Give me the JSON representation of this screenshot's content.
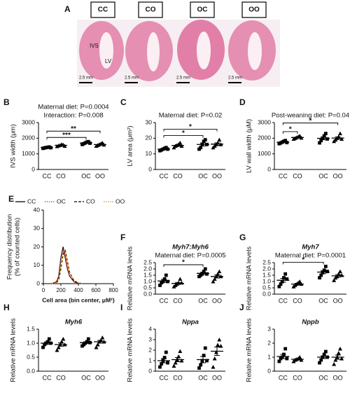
{
  "figure_a": {
    "label": "A",
    "groups": [
      "CC",
      "CO",
      "OC",
      "OO"
    ],
    "annotations": [
      "IVS",
      "LV"
    ],
    "scale_bar": "2.5 mm"
  },
  "chart_data": [
    {
      "type": "dot",
      "panel": "B",
      "annotations": [
        "Maternal diet: P=0.0004",
        "Interaction: P=0.008"
      ],
      "ylabel": "IVS width (μm)",
      "categories": [
        "CC",
        "CO",
        "OC",
        "OO"
      ],
      "markers": [
        "square",
        "triangle",
        "square",
        "triangle"
      ],
      "color": "#000000",
      "points": [
        [
          1350,
          1380,
          1400,
          1420,
          1440,
          1390
        ],
        [
          1480,
          1520,
          1550,
          1600,
          1580,
          1500
        ],
        [
          1600,
          1650,
          1700,
          1750,
          1780,
          1680
        ],
        [
          1500,
          1550,
          1600,
          1650,
          1700,
          1580
        ]
      ],
      "means": [
        1400,
        1545,
        1695,
        1595
      ],
      "sems": [
        20,
        20,
        30,
        30
      ],
      "ylim": [
        0,
        3000
      ],
      "yticks": [
        0,
        1000,
        2000,
        3000
      ],
      "comparisons": [
        {
          "between": [
            "CC",
            "OC"
          ],
          "label": "***"
        },
        {
          "between": [
            "CC",
            "OO"
          ],
          "label": "**"
        }
      ]
    },
    {
      "type": "dot",
      "panel": "C",
      "annotations": [
        "Maternal diet: P=0.02"
      ],
      "ylabel": "LV area (μm²)",
      "categories": [
        "CC",
        "CO",
        "OC",
        "OO"
      ],
      "markers": [
        "square",
        "triangle",
        "square",
        "triangle"
      ],
      "color": "#000000",
      "points": [
        [
          12,
          12.5,
          13,
          13.5,
          14,
          13
        ],
        [
          14,
          15,
          15.5,
          16,
          17,
          15
        ],
        [
          13,
          14,
          16,
          18,
          19,
          16
        ],
        [
          14,
          15,
          16,
          17,
          19,
          16
        ]
      ],
      "means": [
        13,
        15.4,
        16,
        16.2
      ],
      "sems": [
        0.4,
        0.5,
        1,
        0.8
      ],
      "ylim": [
        0,
        30
      ],
      "yticks": [
        0,
        10,
        20,
        30
      ],
      "comparisons": [
        {
          "between": [
            "CC",
            "OC"
          ],
          "label": "*"
        },
        {
          "between": [
            "CC",
            "OO"
          ],
          "label": "*"
        }
      ]
    },
    {
      "type": "dot",
      "panel": "D",
      "annotations": [
        "Post-weaning diet: P=0.04"
      ],
      "ylabel": "LV wall width (μM)",
      "categories": [
        "CC",
        "CO",
        "OC",
        "OO"
      ],
      "markers": [
        "square",
        "triangle",
        "square",
        "triangle"
      ],
      "color": "#000000",
      "points": [
        [
          1650,
          1700,
          1750,
          1800,
          1850,
          1720
        ],
        [
          1950,
          2000,
          2050,
          2100,
          2150,
          2020
        ],
        [
          1700,
          1850,
          2000,
          2150,
          2300,
          1950
        ],
        [
          1800,
          1900,
          2000,
          2100,
          2300,
          1950
        ]
      ],
      "means": [
        1745,
        2045,
        1990,
        2010
      ],
      "sems": [
        30,
        30,
        90,
        70
      ],
      "ylim": [
        0,
        3000
      ],
      "yticks": [
        0,
        1000,
        2000,
        3000
      ],
      "comparisons": [
        {
          "between": [
            "CC",
            "CO"
          ],
          "label": "*"
        },
        {
          "between": [
            "CC",
            "OO"
          ],
          "label": "*"
        }
      ]
    },
    {
      "type": "line",
      "panel": "E",
      "ylabel": [
        "Frequency distribution",
        "(% of counted cells)"
      ],
      "xlabel": "Cell area (bin center, μM²)",
      "x": [
        100,
        150,
        175,
        200,
        225,
        250,
        275,
        300,
        350,
        400,
        450
      ],
      "series": [
        {
          "name": "CC",
          "color": "#000000",
          "dash": "solid",
          "values": [
            0,
            1,
            4,
            14,
            20,
            14,
            8,
            4,
            1,
            0.2,
            0
          ]
        },
        {
          "name": "OC",
          "color": "#e0301e",
          "dash": "dotted",
          "values": [
            0,
            1,
            4,
            13,
            19,
            15,
            8,
            4,
            1,
            0.2,
            0
          ]
        },
        {
          "name": "CO",
          "color": "#000000",
          "dash": "dashed",
          "values": [
            0,
            0.5,
            2,
            8,
            16,
            18,
            12,
            6,
            1.5,
            0.3,
            0
          ]
        },
        {
          "name": "OO",
          "color": "#e8901e",
          "dash": "dotted",
          "values": [
            0,
            0.5,
            2,
            9,
            15,
            17,
            12,
            6,
            2,
            0.4,
            0
          ]
        }
      ],
      "xlim": [
        0,
        800
      ],
      "xticks": [
        0,
        200,
        400,
        600,
        800
      ],
      "ylim": [
        0,
        40
      ],
      "yticks": [
        0,
        10,
        20,
        30,
        40
      ]
    },
    {
      "type": "dot",
      "panel": "F",
      "title": "Myh7:Myh6",
      "annotations": [
        "Maternal diet: P=0.0005"
      ],
      "ylabel": "Relative mRNA levels",
      "categories": [
        "CC",
        "CO",
        "OC",
        "OO"
      ],
      "markers": [
        "square",
        "triangle",
        "square",
        "triangle"
      ],
      "color": "#000000",
      "points": [
        [
          0.7,
          0.9,
          1.0,
          1.2,
          1.5,
          1.0
        ],
        [
          0.6,
          0.7,
          0.8,
          0.9,
          1.2,
          0.9
        ],
        [
          1.4,
          1.5,
          1.6,
          1.8,
          2.0,
          1.6
        ],
        [
          1.0,
          1.2,
          1.4,
          1.6,
          1.8,
          1.4
        ]
      ],
      "means": [
        1.05,
        0.85,
        1.65,
        1.4
      ],
      "sems": [
        0.12,
        0.08,
        0.09,
        0.12
      ],
      "ylim": [
        0,
        2.5
      ],
      "yticks": [
        {
          "value": 0,
          "label": "0.0"
        },
        0.5,
        {
          "value": 1,
          "label": "1.0"
        },
        1.5,
        {
          "value": 2,
          "label": "2.0"
        },
        2.5
      ],
      "comparisons": [
        {
          "between": [
            "CC",
            "OC"
          ],
          "label": "*"
        }
      ]
    },
    {
      "type": "dot",
      "panel": "G",
      "title": "Myh7",
      "annotations": [
        "Maternal diet: P=0.0001"
      ],
      "ylabel": "Relative mRNA levels",
      "categories": [
        "CC",
        "CO",
        "OC",
        "OO"
      ],
      "markers": [
        "square",
        "triangle",
        "square",
        "triangle"
      ],
      "color": "#000000",
      "points": [
        [
          0.6,
          0.8,
          1.0,
          1.3,
          1.6,
          1.2
        ],
        [
          0.6,
          0.7,
          0.8,
          0.9,
          1.0,
          0.8
        ],
        [
          1.3,
          1.5,
          1.7,
          1.9,
          2.2,
          1.8
        ],
        [
          1.1,
          1.3,
          1.4,
          1.6,
          1.8,
          1.5
        ]
      ],
      "means": [
        1.1,
        0.8,
        1.75,
        1.45
      ],
      "sems": [
        0.15,
        0.06,
        0.12,
        0.1
      ],
      "ylim": [
        0,
        2.5
      ],
      "yticks": [
        {
          "value": 0,
          "label": "0.0"
        },
        0.5,
        {
          "value": 1,
          "label": "1.0"
        },
        1.5,
        {
          "value": 2,
          "label": "2.0"
        },
        2.5
      ],
      "comparisons": [
        {
          "between": [
            "CC",
            "OC"
          ],
          "label": "*"
        }
      ]
    },
    {
      "type": "dot",
      "panel": "H",
      "title": "Myh6",
      "ylabel": "Relative mRNA levels",
      "categories": [
        "CC",
        "CO",
        "OC",
        "OO"
      ],
      "markers": [
        "square",
        "triangle",
        "square",
        "triangle"
      ],
      "color": "#000000",
      "points": [
        [
          0.85,
          0.95,
          1.0,
          1.05,
          1.15,
          1.0
        ],
        [
          0.75,
          0.85,
          0.95,
          1.05,
          1.15,
          0.95
        ],
        [
          0.9,
          0.95,
          1.0,
          1.05,
          1.15,
          1.02
        ],
        [
          0.85,
          0.95,
          1.05,
          1.1,
          1.2,
          1.05
        ]
      ],
      "means": [
        1.0,
        0.95,
        1.02,
        1.05
      ],
      "sems": [
        0.04,
        0.06,
        0.03,
        0.05
      ],
      "ylim": [
        0,
        1.5
      ],
      "yticks": [
        {
          "value": 0,
          "label": "0.0"
        },
        0.5,
        {
          "value": 1,
          "label": "1.0"
        },
        1.5
      ]
    },
    {
      "type": "dot",
      "panel": "I",
      "title": "Nppa",
      "ylabel": "Relative mRNA levels",
      "categories": [
        "CC",
        "CO",
        "OC",
        "OO"
      ],
      "markers": [
        "square",
        "triangle",
        "square",
        "triangle"
      ],
      "color": "#000000",
      "points": [
        [
          0.4,
          0.7,
          1.0,
          1.3,
          1.8,
          0.8
        ],
        [
          0.5,
          0.8,
          1.1,
          1.4,
          1.9,
          1.0
        ],
        [
          0.3,
          0.6,
          1.0,
          1.5,
          2.2,
          1.0
        ],
        [
          0.4,
          1.2,
          1.8,
          2.5,
          3.0,
          2.4
        ]
      ],
      "means": [
        1.0,
        1.1,
        1.1,
        1.9
      ],
      "sems": [
        0.2,
        0.2,
        0.3,
        0.4
      ],
      "ylim": [
        0,
        4
      ],
      "yticks": [
        0,
        1,
        2,
        3,
        4
      ]
    },
    {
      "type": "dot",
      "panel": "J",
      "title": "Nppb",
      "ylabel": "Relative mRNA levels",
      "categories": [
        "CC",
        "CO",
        "OC",
        "OO"
      ],
      "markers": [
        "square",
        "triangle",
        "square",
        "triangle"
      ],
      "color": "#000000",
      "points": [
        [
          0.7,
          0.9,
          1.0,
          1.2,
          1.6,
          0.9
        ],
        [
          0.7,
          0.8,
          0.85,
          0.9,
          1.0,
          0.8
        ],
        [
          0.6,
          0.8,
          1.0,
          1.2,
          1.4,
          1.0
        ],
        [
          0.5,
          0.8,
          1.0,
          1.3,
          1.6,
          0.9
        ]
      ],
      "means": [
        1.05,
        0.85,
        1.0,
        1.0
      ],
      "sems": [
        0.15,
        0.05,
        0.1,
        0.15
      ],
      "ylim": [
        0,
        3
      ],
      "yticks": [
        0,
        1,
        2,
        3
      ]
    }
  ]
}
